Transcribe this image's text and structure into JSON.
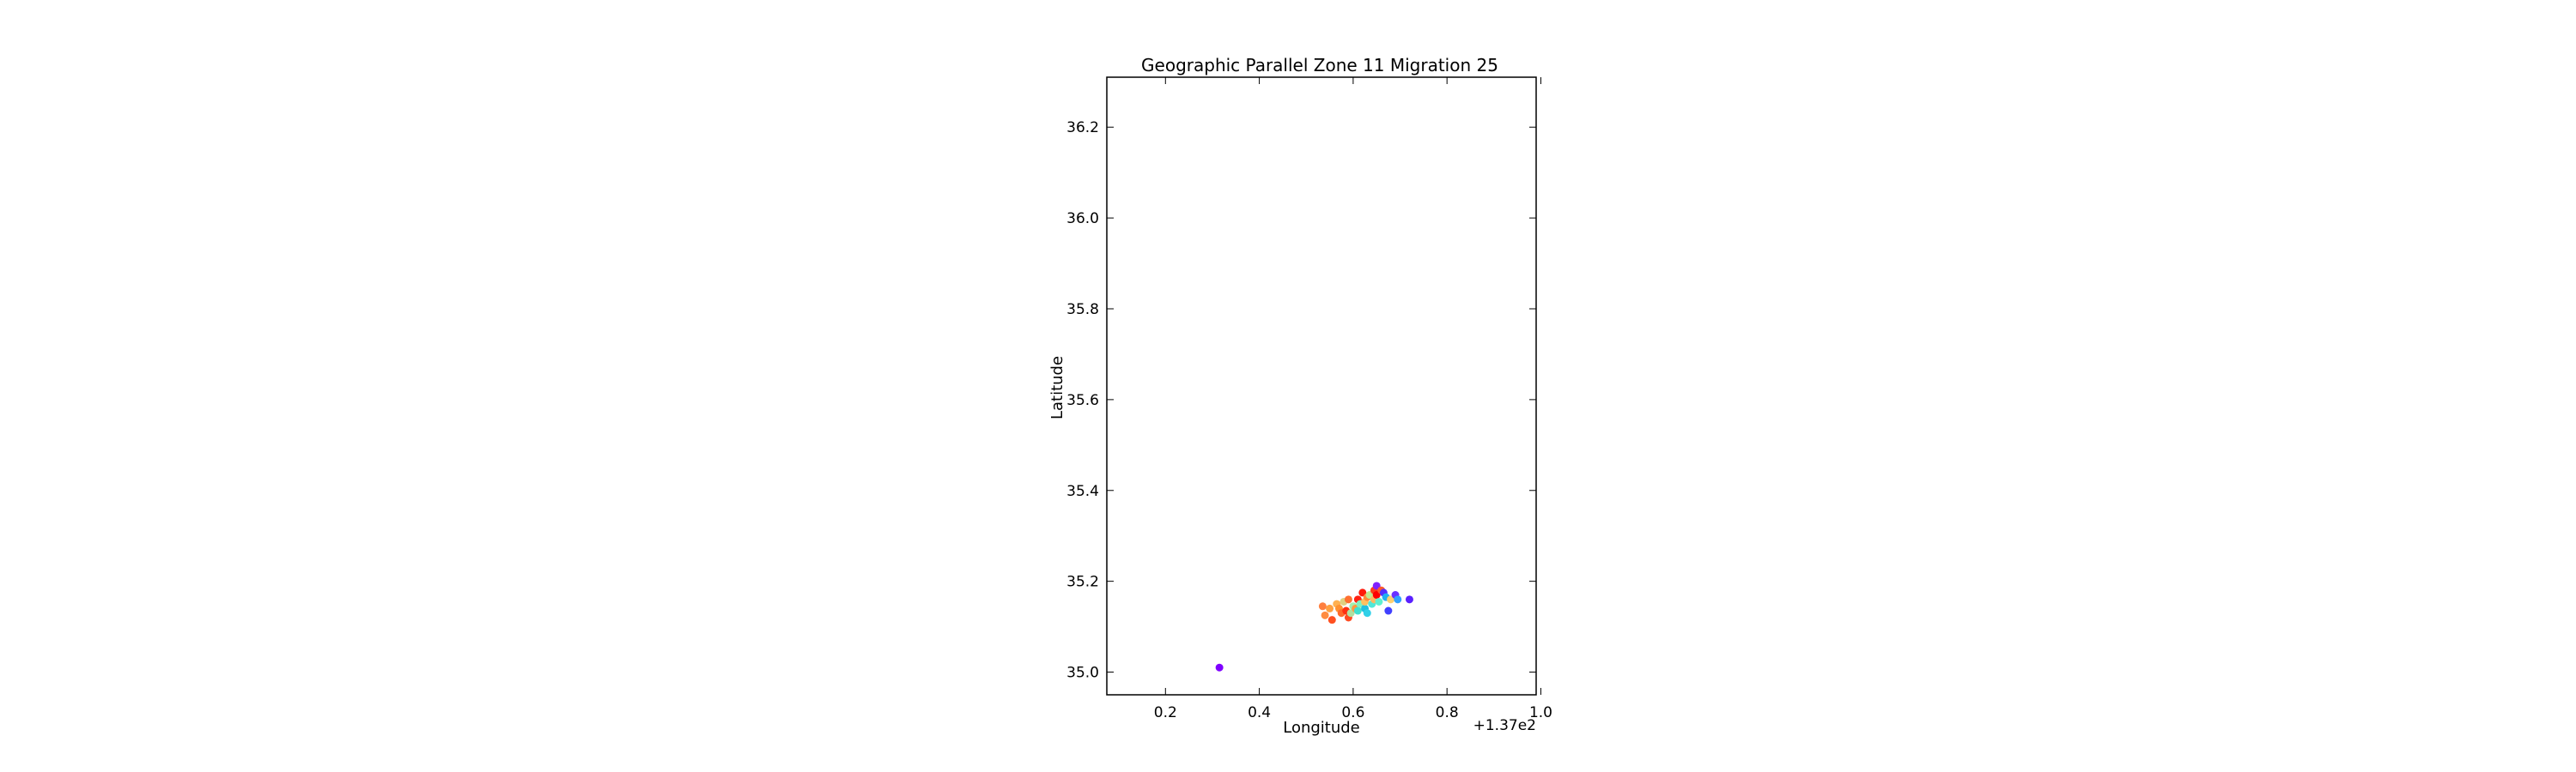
{
  "chart_data": {
    "type": "scatter",
    "title": "Geographic Parallel Zone 11 Migration 25",
    "xlabel": "Longitude",
    "ylabel": "Latitude",
    "x_offset_label": "+1.37e2",
    "xlim": [
      137.075,
      137.99
    ],
    "ylim": [
      34.95,
      36.31
    ],
    "xticks": [
      137.2,
      137.4,
      137.6,
      137.8,
      138.0
    ],
    "xtick_labels": [
      "0.2",
      "0.4",
      "0.6",
      "0.8",
      "1.0"
    ],
    "yticks": [
      35.0,
      35.2,
      35.4,
      35.6,
      35.8,
      36.0,
      36.2
    ],
    "ytick_labels": [
      "35.0",
      "35.2",
      "35.4",
      "35.6",
      "35.8",
      "36.0",
      "36.2"
    ],
    "grid": false,
    "legend": "none",
    "colormap": "rainbow",
    "points": [
      {
        "x": 137.315,
        "y": 35.01,
        "color": "#7f00ff"
      },
      {
        "x": 137.535,
        "y": 35.145,
        "color": "#ff7f3f"
      },
      {
        "x": 137.54,
        "y": 35.125,
        "color": "#ff8c40"
      },
      {
        "x": 137.55,
        "y": 35.14,
        "color": "#ffa040"
      },
      {
        "x": 137.555,
        "y": 35.115,
        "color": "#ff5020"
      },
      {
        "x": 137.565,
        "y": 35.15,
        "color": "#ffb050"
      },
      {
        "x": 137.57,
        "y": 35.14,
        "color": "#ff9030"
      },
      {
        "x": 137.575,
        "y": 35.13,
        "color": "#ff6a2a"
      },
      {
        "x": 137.58,
        "y": 35.155,
        "color": "#e0d080"
      },
      {
        "x": 137.585,
        "y": 35.135,
        "color": "#ff3010"
      },
      {
        "x": 137.59,
        "y": 35.12,
        "color": "#ff4a20"
      },
      {
        "x": 137.59,
        "y": 35.16,
        "color": "#ff7030"
      },
      {
        "x": 137.595,
        "y": 35.13,
        "color": "#b0e0a0"
      },
      {
        "x": 137.6,
        "y": 35.145,
        "color": "#a0f0b0"
      },
      {
        "x": 137.605,
        "y": 35.14,
        "color": "#ff9a40"
      },
      {
        "x": 137.61,
        "y": 35.16,
        "color": "#ff2010"
      },
      {
        "x": 137.61,
        "y": 35.135,
        "color": "#40e0d0"
      },
      {
        "x": 137.615,
        "y": 35.15,
        "color": "#80f0c0"
      },
      {
        "x": 137.62,
        "y": 35.175,
        "color": "#ff1a0a"
      },
      {
        "x": 137.625,
        "y": 35.14,
        "color": "#20c0e0"
      },
      {
        "x": 137.625,
        "y": 35.155,
        "color": "#ffc060"
      },
      {
        "x": 137.63,
        "y": 35.165,
        "color": "#ff8a3a"
      },
      {
        "x": 137.63,
        "y": 35.13,
        "color": "#30d0e8"
      },
      {
        "x": 137.635,
        "y": 35.17,
        "color": "#c0e890"
      },
      {
        "x": 137.64,
        "y": 35.15,
        "color": "#50e8d8"
      },
      {
        "x": 137.645,
        "y": 35.18,
        "color": "#ff3a1a"
      },
      {
        "x": 137.645,
        "y": 35.16,
        "color": "#ffb860"
      },
      {
        "x": 137.65,
        "y": 35.19,
        "color": "#7f20ff"
      },
      {
        "x": 137.65,
        "y": 35.17,
        "color": "#ff0000"
      },
      {
        "x": 137.655,
        "y": 35.155,
        "color": "#60f0d0"
      },
      {
        "x": 137.66,
        "y": 35.18,
        "color": "#ff5a2a"
      },
      {
        "x": 137.665,
        "y": 35.175,
        "color": "#5030ff"
      },
      {
        "x": 137.67,
        "y": 35.165,
        "color": "#20b0f0"
      },
      {
        "x": 137.675,
        "y": 35.135,
        "color": "#4040ff"
      },
      {
        "x": 137.68,
        "y": 35.16,
        "color": "#ffd070"
      },
      {
        "x": 137.69,
        "y": 35.17,
        "color": "#6a30ff"
      },
      {
        "x": 137.695,
        "y": 35.16,
        "color": "#30a0ff"
      },
      {
        "x": 137.72,
        "y": 35.16,
        "color": "#5a20ff"
      }
    ]
  }
}
